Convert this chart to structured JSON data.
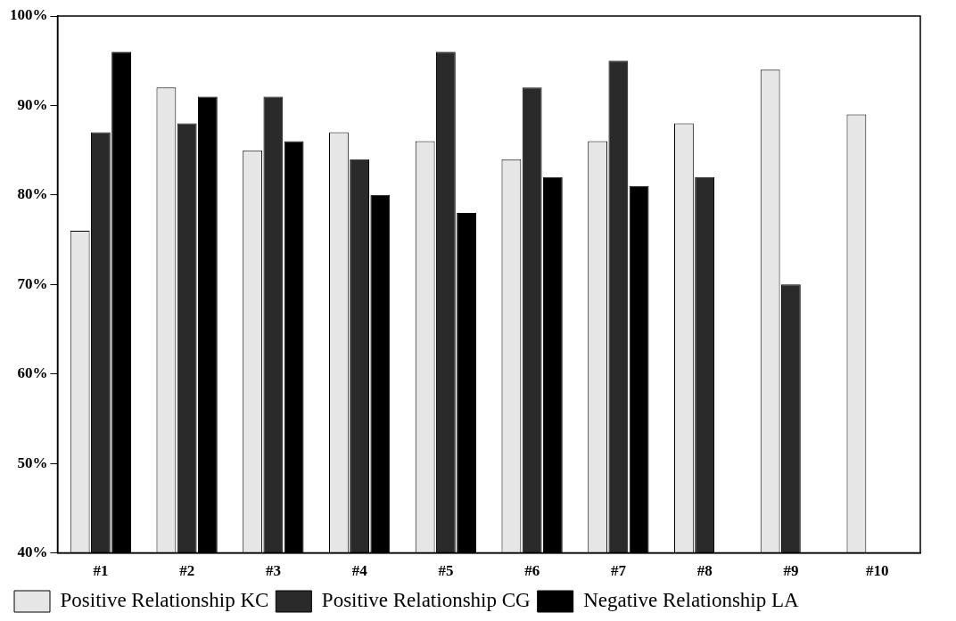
{
  "chart_data": {
    "type": "bar",
    "categories": [
      "#1",
      "#2",
      "#3",
      "#4",
      "#5",
      "#6",
      "#7",
      "#8",
      "#9",
      "#10"
    ],
    "series": [
      {
        "name": "Positive Relationship KC",
        "color": "#e6e6e6",
        "values": [
          76,
          92,
          85,
          87,
          86,
          84,
          86,
          88,
          94,
          89
        ]
      },
      {
        "name": "Positive Relationship CG",
        "color": "#2a2a2a",
        "values": [
          87,
          88,
          91,
          84,
          96,
          92,
          95,
          82,
          70,
          null
        ]
      },
      {
        "name": "Negative Relationship LA",
        "color": "#000000",
        "values": [
          96,
          91,
          86,
          80,
          78,
          82,
          81,
          null,
          null,
          null
        ]
      }
    ],
    "ylim": [
      40,
      100
    ],
    "yticks": [
      {
        "value": 40,
        "label": "40%"
      },
      {
        "value": 50,
        "label": "50%"
      },
      {
        "value": 60,
        "label": "60%"
      },
      {
        "value": 70,
        "label": "70%"
      },
      {
        "value": 80,
        "label": "80%"
      },
      {
        "value": 90,
        "label": "90%"
      },
      {
        "value": 100,
        "label": "100%"
      }
    ],
    "grid": false,
    "legend": "bottom"
  }
}
